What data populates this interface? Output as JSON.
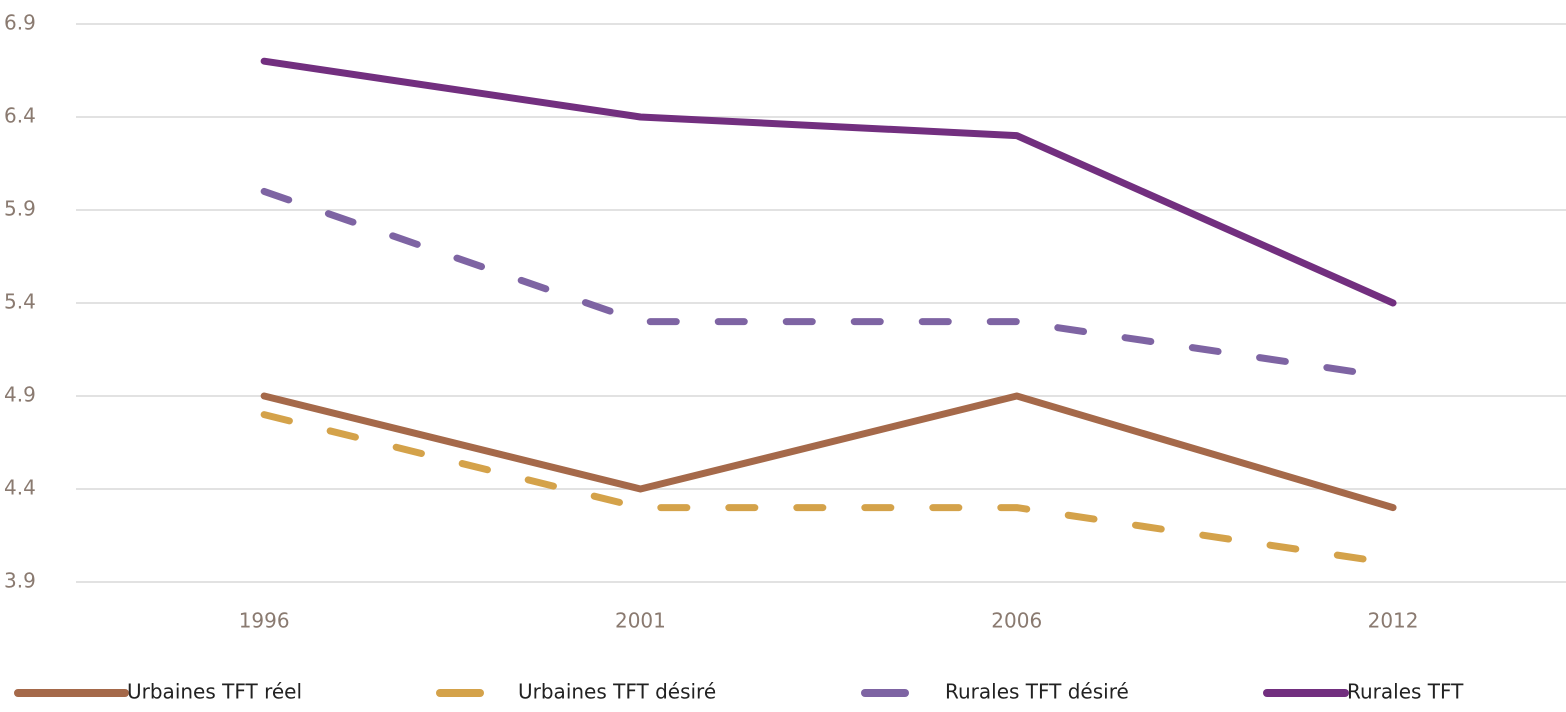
{
  "chart_data": {
    "type": "line",
    "categories": [
      "1996",
      "2001",
      "2006",
      "2012"
    ],
    "series": [
      {
        "name": "Urbaines TFT réel",
        "color": "#a5694a",
        "line_style": "solid",
        "values": [
          4.9,
          4.4,
          4.9,
          4.3
        ]
      },
      {
        "name": "Urbaines TFT désiré",
        "color": "#d4a24a",
        "line_style": "dashed",
        "values": [
          4.8,
          4.3,
          4.3,
          4.0
        ]
      },
      {
        "name": "Rurales TFT désiré",
        "color": "#7e64a3",
        "line_style": "dashed",
        "values": [
          6.0,
          5.3,
          5.3,
          5.0
        ]
      },
      {
        "name": "Rurales TFT",
        "color": "#722f7f",
        "line_style": "solid",
        "values": [
          6.7,
          6.4,
          6.3,
          5.4
        ]
      }
    ],
    "ylim": [
      3.9,
      6.9
    ],
    "yticks": [
      3.9,
      4.4,
      4.9,
      5.4,
      5.9,
      6.4,
      6.9
    ],
    "grid": true,
    "legend": "bottom"
  }
}
